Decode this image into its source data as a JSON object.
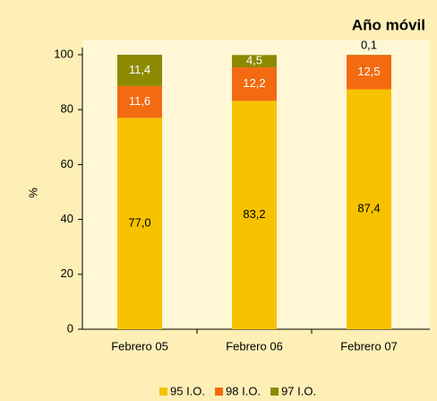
{
  "chart_data": {
    "type": "stacked_bar",
    "title": "Año móvil",
    "y_axis_label": "%",
    "categories": [
      "Febrero 05",
      "Febrero 06",
      "Febrero 07"
    ],
    "series": [
      {
        "name": "95 I.O.",
        "color": "#f7c300",
        "values": [
          77.0,
          83.2,
          87.4
        ],
        "value_labels": [
          "77,0",
          "83,2",
          "87,4"
        ]
      },
      {
        "name": "98 I.O.",
        "color": "#f36a10",
        "values": [
          11.6,
          12.2,
          12.5
        ],
        "value_labels": [
          "11,6",
          "12,2",
          "12,5"
        ]
      },
      {
        "name": "97 I.O.",
        "color": "#8c8a00",
        "values": [
          11.4,
          4.5,
          0.1
        ],
        "value_labels": [
          "11,4",
          "4,5",
          "0,1"
        ]
      }
    ],
    "ylim": [
      0,
      100
    ],
    "yticks": [
      0,
      20,
      40,
      60,
      80,
      100
    ],
    "legend": "bottom"
  }
}
